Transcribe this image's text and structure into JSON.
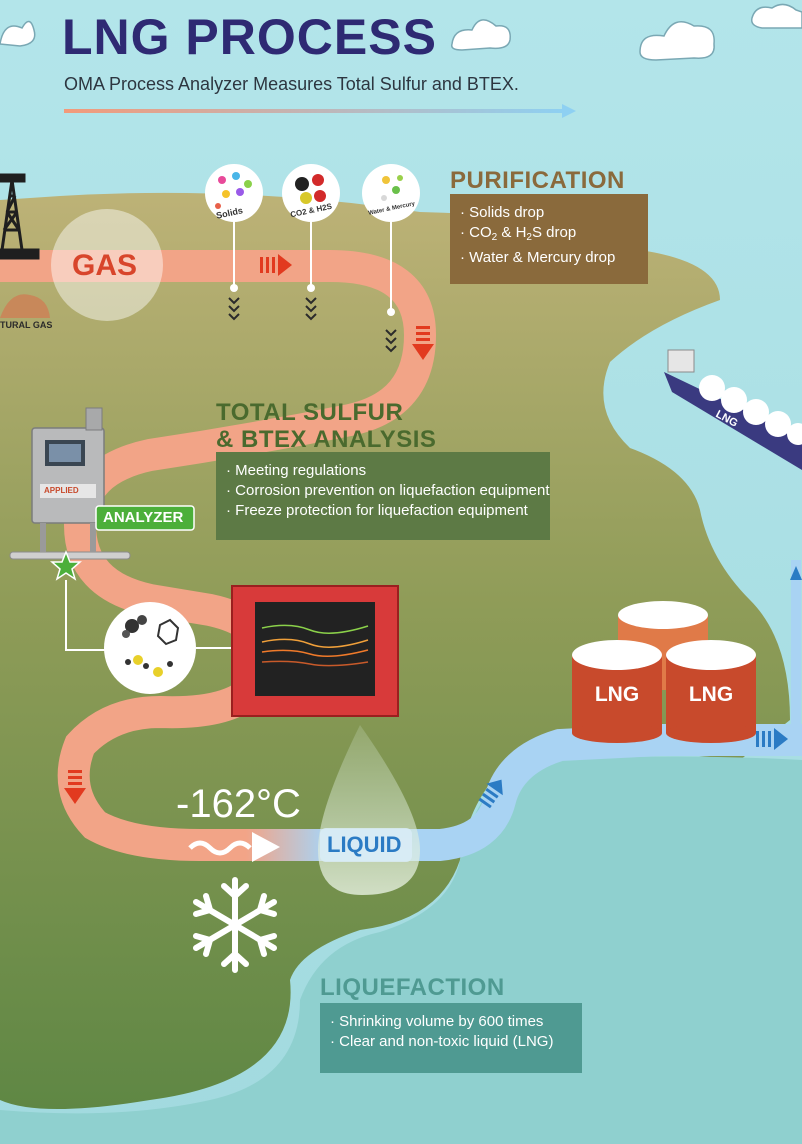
{
  "header": {
    "title": "LNG PROCESS",
    "subtitle": "OMA Process Analyzer Measures Total Sulfur and BTEX."
  },
  "source": {
    "label": "TURAL GAS"
  },
  "gas_pipe": {
    "label": "GAS"
  },
  "purification": {
    "heading": "PURIFICATION",
    "items": [
      {
        "prefix": "Solids drop"
      },
      {
        "prefix": "CO",
        "sub1": "2",
        "mid": " & H",
        "sub2": "2",
        "suffix": "S drop"
      },
      {
        "prefix": "Water & Mercury drop"
      }
    ],
    "bubbles": [
      "Solids",
      "CO2 & H2S",
      "Water & Mercury"
    ]
  },
  "analysis": {
    "heading_line1": "TOTAL SULFUR",
    "heading_line2": "& BTEX ANALYSIS",
    "items": [
      "Meeting regulations",
      "Corrosion prevention on liquefaction equipment",
      "Freeze protection for liquefaction equipment"
    ],
    "analyzer_label": "ANALYZER",
    "analyzer_brand": "APPLIED"
  },
  "liquefaction": {
    "temperature": "-162°C",
    "liquid_label": "LIQUID",
    "heading": "LIQUEFACTION",
    "items": [
      "Shrinking volume by 600 times",
      "Clear and non-toxic liquid (LNG)"
    ]
  },
  "storage": {
    "tank_labels": [
      "LNG",
      "LNG"
    ],
    "ship_label": "LNG"
  },
  "colors": {
    "sky": "#a8dfe3",
    "land": "#8e9a57",
    "gas_pipe": "#f2a487",
    "liquid_pipe": "#9fd0f4",
    "title": "#2e2a73",
    "purification_box": "#8a6a3c",
    "analysis_box": "#5d7a45",
    "liquefaction_box": "#4f9a92",
    "analyzer_badge": "#4caf3a",
    "tank": "#c84a2c"
  }
}
